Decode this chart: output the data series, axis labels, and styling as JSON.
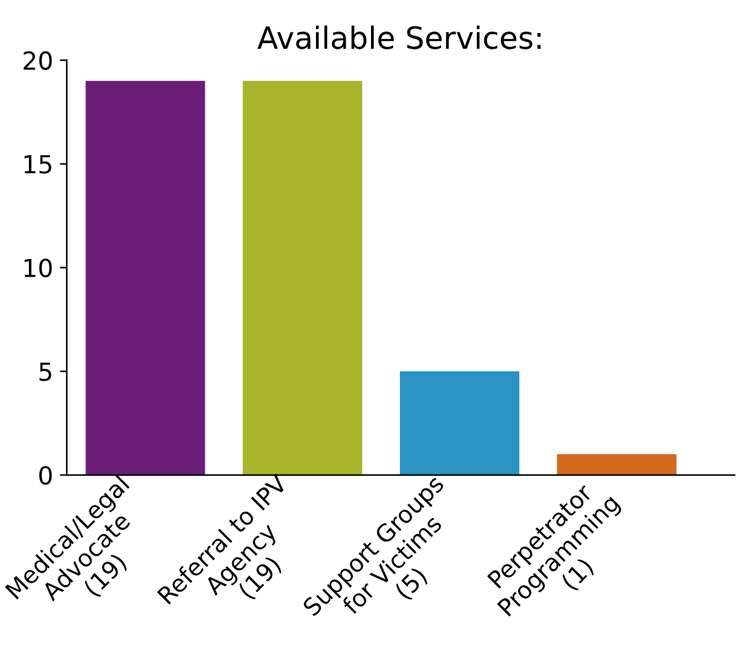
{
  "chart_data": {
    "type": "bar",
    "title": "Available Services:",
    "categories": [
      "Medical/Legal\nAdvocate\n(19)",
      "Referral to IPV\nAgency\n(19)",
      "Support Groups\nfor Victims\n(5)",
      "Perpetrator\nProgramming\n(1)"
    ],
    "values": [
      19,
      19,
      5,
      1
    ],
    "colors": [
      "#6a1e78",
      "#a8b42a",
      "#2a93c4",
      "#d2691e"
    ],
    "ylim": [
      0,
      20
    ],
    "yticks": [
      0,
      5,
      10,
      15,
      20
    ],
    "grid": false,
    "legend": false
  }
}
